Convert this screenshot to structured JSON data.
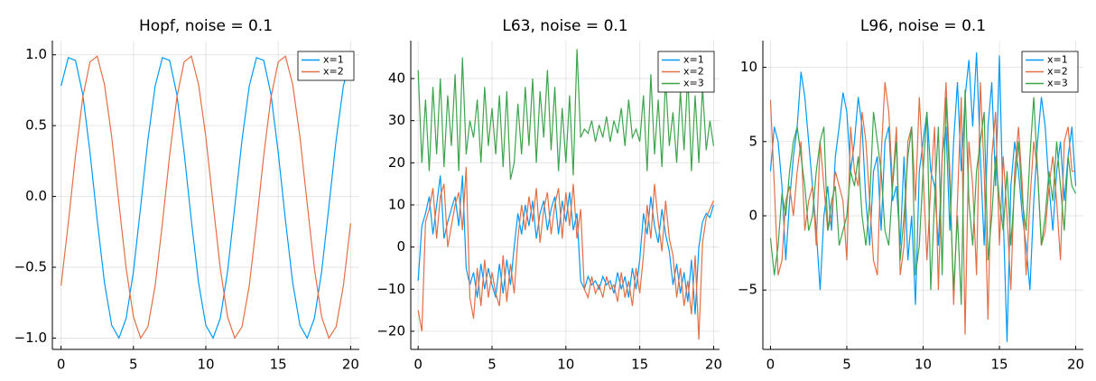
{
  "chart_data": [
    {
      "type": "line",
      "title": "Hopf, noise = 0.1",
      "x": [
        0,
        0.5,
        1,
        1.5,
        2,
        2.5,
        3,
        3.5,
        4,
        4.5,
        5,
        5.5,
        6,
        6.5,
        7,
        7.5,
        8,
        8.5,
        9,
        9.5,
        10,
        10.5,
        11,
        11.5,
        12,
        12.5,
        13,
        13.5,
        14,
        14.5,
        15,
        15.5,
        16,
        16.5,
        17,
        17.5,
        18,
        18.5,
        19,
        19.5,
        20
      ],
      "series": [
        {
          "name": "x=1",
          "color": "#009af9",
          "values": [
            0.78,
            0.98,
            0.96,
            0.72,
            0.31,
            -0.17,
            -0.61,
            -0.91,
            -1.0,
            -0.86,
            -0.53,
            -0.07,
            0.4,
            0.78,
            0.98,
            0.96,
            0.72,
            0.31,
            -0.17,
            -0.61,
            -0.91,
            -1.0,
            -0.86,
            -0.53,
            -0.07,
            0.4,
            0.78,
            0.98,
            0.96,
            0.72,
            0.31,
            -0.17,
            -0.61,
            -0.91,
            -1.0,
            -0.86,
            -0.53,
            -0.07,
            0.4,
            0.78,
            0.98
          ]
        },
        {
          "name": "x=2",
          "color": "#e26f46",
          "values": [
            -0.63,
            -0.19,
            0.29,
            0.7,
            0.95,
            0.99,
            0.79,
            0.42,
            -0.05,
            -0.51,
            -0.85,
            -1.0,
            -0.92,
            -0.63,
            -0.19,
            0.29,
            0.7,
            0.95,
            0.99,
            0.79,
            0.42,
            -0.05,
            -0.51,
            -0.85,
            -1.0,
            -0.92,
            -0.63,
            -0.19,
            0.29,
            0.7,
            0.95,
            0.99,
            0.79,
            0.42,
            -0.05,
            -0.51,
            -0.85,
            -1.0,
            -0.92,
            -0.63,
            -0.19
          ]
        }
      ],
      "xlim": [
        -0.6,
        20.6
      ],
      "ylim": [
        -1.08,
        1.1
      ],
      "xticks": [
        0,
        5,
        10,
        15,
        20
      ],
      "yticks": [
        {
          "value": -1.0,
          "label": "−1.0"
        },
        {
          "value": -0.5,
          "label": "−0.5"
        },
        {
          "value": 0.0,
          "label": "0.0"
        },
        0.5,
        {
          "value": 1.0,
          "label": "1.0"
        }
      ],
      "grid": true,
      "legend": "top-right"
    },
    {
      "type": "line",
      "title": "L63, noise = 0.1",
      "x": [
        0,
        0.25,
        0.5,
        0.75,
        1,
        1.25,
        1.5,
        1.75,
        2,
        2.25,
        2.5,
        2.75,
        3,
        3.25,
        3.5,
        3.75,
        4,
        4.25,
        4.5,
        4.75,
        5,
        5.25,
        5.5,
        5.75,
        6,
        6.25,
        6.5,
        6.75,
        7,
        7.25,
        7.5,
        7.75,
        8,
        8.25,
        8.5,
        8.75,
        9,
        9.25,
        9.5,
        9.75,
        10,
        10.25,
        10.5,
        10.75,
        11,
        11.25,
        11.5,
        11.75,
        12,
        12.25,
        12.5,
        12.75,
        13,
        13.25,
        13.5,
        13.75,
        14,
        14.25,
        14.5,
        14.75,
        15,
        15.25,
        15.5,
        15.75,
        16,
        16.25,
        16.5,
        16.75,
        17,
        17.25,
        17.5,
        17.75,
        18,
        18.25,
        18.5,
        18.75,
        19,
        19.25,
        19.5,
        19.75,
        20
      ],
      "series": [
        {
          "name": "x=1",
          "color": "#009af9",
          "values": [
            -8,
            5,
            8,
            12,
            3,
            10,
            17,
            2,
            6,
            9,
            12,
            5,
            17,
            -5,
            -9,
            -6,
            -12,
            -4,
            -10,
            -5,
            -9,
            -12,
            -4,
            -11,
            -3,
            -9,
            0,
            8,
            3,
            10,
            5,
            11,
            2,
            8,
            11,
            4,
            9,
            12,
            3,
            11,
            6,
            13,
            4,
            8,
            -8,
            -10,
            -7,
            -9,
            -8,
            -10,
            -7,
            -9,
            -8,
            -11,
            -6,
            -10,
            -7,
            -12,
            -5,
            -10,
            -3,
            8,
            3,
            12,
            5,
            1,
            9,
            3,
            -1,
            -9,
            -4,
            -11,
            -6,
            -13,
            -3,
            -16,
            0,
            6,
            8,
            7,
            10
          ]
        },
        {
          "name": "x=2",
          "color": "#e26f46",
          "values": [
            -15,
            -20,
            6,
            9,
            14,
            2,
            12,
            15,
            0,
            5,
            10,
            13,
            4,
            19,
            -12,
            -17,
            -5,
            -14,
            -3,
            -12,
            -6,
            -11,
            -14,
            -2,
            -13,
            -4,
            -11,
            2,
            10,
            4,
            12,
            6,
            14,
            1,
            9,
            13,
            3,
            10,
            14,
            2,
            13,
            5,
            15,
            2,
            9,
            -10,
            -12,
            -7,
            -11,
            -9,
            -12,
            -7,
            -10,
            -9,
            -13,
            -6,
            -12,
            -8,
            -14,
            -5,
            -11,
            -2,
            10,
            2,
            15,
            6,
            -1,
            11,
            2,
            -2,
            -12,
            -5,
            -14,
            -8,
            -16,
            -2,
            -22,
            1,
            7,
            9,
            11
          ]
        },
        {
          "name": "x=3",
          "color": "#3da44d",
          "values": [
            42,
            20,
            35,
            18,
            38,
            22,
            40,
            19,
            36,
            24,
            41,
            18,
            45,
            22,
            30,
            26,
            35,
            20,
            38,
            24,
            33,
            22,
            36,
            19,
            37,
            16,
            20,
            34,
            22,
            38,
            24,
            40,
            20,
            37,
            26,
            42,
            23,
            38,
            18,
            33,
            20,
            36,
            17,
            47,
            26,
            28,
            27,
            30,
            25,
            29,
            26,
            31,
            25,
            30,
            27,
            33,
            24,
            35,
            26,
            28,
            25,
            36,
            18,
            41,
            22,
            35,
            19,
            40,
            24,
            32,
            20,
            37,
            23,
            41,
            18,
            36,
            20,
            38,
            23,
            30,
            24
          ]
        }
      ],
      "xlim": [
        -0.5,
        20.4
      ],
      "ylim": [
        -24.3,
        49
      ],
      "xticks": [
        0,
        5,
        10,
        15,
        20
      ],
      "yticks": [
        {
          "value": -20,
          "label": "−20"
        },
        {
          "value": -10,
          "label": "−10"
        },
        0,
        10,
        20,
        30,
        40
      ],
      "grid": true,
      "legend": "top-right"
    },
    {
      "type": "line",
      "title": "L96, noise = 0.1",
      "x": [
        0,
        0.25,
        0.5,
        0.75,
        1,
        1.25,
        1.5,
        1.75,
        2,
        2.25,
        2.5,
        2.75,
        3,
        3.25,
        3.5,
        3.75,
        4,
        4.25,
        4.5,
        4.75,
        5,
        5.25,
        5.5,
        5.75,
        6,
        6.25,
        6.5,
        6.75,
        7,
        7.25,
        7.5,
        7.75,
        8,
        8.25,
        8.5,
        8.75,
        9,
        9.25,
        9.5,
        9.75,
        10,
        10.25,
        10.5,
        10.75,
        11,
        11.25,
        11.5,
        11.75,
        12,
        12.25,
        12.5,
        12.75,
        13,
        13.25,
        13.5,
        13.75,
        14,
        14.25,
        14.5,
        14.75,
        15,
        15.25,
        15.5,
        15.75,
        16,
        16.25,
        16.5,
        16.75,
        17,
        17.25,
        17.5,
        17.75,
        18,
        18.25,
        18.5,
        18.75,
        19,
        19.25,
        19.5,
        19.75,
        20
      ],
      "series": [
        {
          "name": "x=1",
          "color": "#009af9",
          "values": [
            3,
            6,
            5,
            2,
            -3,
            1,
            4,
            6,
            9.7,
            8,
            5,
            2,
            -1,
            -5,
            0,
            2,
            -1,
            4,
            6,
            8.3,
            7,
            3,
            5,
            8,
            6,
            1,
            -2,
            3,
            4,
            -1,
            5,
            6,
            1,
            2,
            -2,
            4,
            -3,
            0,
            -6,
            3,
            5,
            7,
            3,
            2,
            -2,
            4,
            6,
            -1,
            5,
            9,
            3,
            8,
            10.5,
            6,
            11,
            4,
            -2,
            6,
            9,
            2,
            10.8,
            0,
            -8.5,
            2,
            5,
            3,
            0,
            -2,
            -5,
            1,
            5,
            8,
            6,
            2,
            -1,
            3,
            5,
            1,
            4,
            6,
            2
          ]
        },
        {
          "name": "x=2",
          "color": "#e26f46",
          "values": [
            7.8,
            2,
            -4,
            -3,
            1,
            2,
            0,
            3,
            5,
            -1,
            1,
            2,
            -2,
            5,
            2,
            -1,
            0,
            3,
            2,
            1,
            -3,
            6,
            3,
            2,
            7,
            5,
            1,
            -3,
            -4,
            4,
            9,
            7,
            2,
            6,
            -4,
            -2,
            5,
            6,
            1,
            8,
            3,
            -3,
            2,
            6,
            -5,
            4,
            9,
            3,
            -6,
            1,
            8,
            -8,
            5,
            2,
            -4,
            9,
            3,
            -7,
            4,
            7,
            -2,
            4,
            0,
            -5,
            3,
            6,
            2,
            -4,
            1,
            5,
            3,
            -2,
            -1,
            2,
            4,
            1,
            -3,
            5,
            6,
            3,
            3
          ]
        },
        {
          "name": "x=3",
          "color": "#3da44d",
          "values": [
            -1.5,
            -4,
            -2,
            1.5,
            0,
            3,
            5,
            6,
            4,
            2,
            -1,
            0,
            3,
            5,
            6,
            -1,
            1,
            2,
            -2,
            -1,
            0,
            3,
            2,
            4,
            0,
            -2,
            1,
            7,
            5,
            3,
            -1,
            -2,
            2,
            5,
            -3,
            0,
            4,
            6,
            -4,
            -2,
            3,
            7,
            -5,
            1,
            6,
            -4,
            8,
            2,
            -5,
            0,
            -6,
            8.5,
            1,
            -2,
            3,
            5,
            7,
            -3,
            0,
            4,
            1,
            -1,
            3,
            -2,
            2,
            5,
            1,
            -1,
            4,
            8,
            3,
            -2,
            0,
            3,
            1,
            5,
            2,
            -1,
            4,
            2,
            1.5
          ]
        }
      ],
      "xlim": [
        -0.5,
        20.5
      ],
      "ylim": [
        -9,
        11.8
      ],
      "xticks": [
        0,
        5,
        10,
        15,
        20
      ],
      "yticks": [
        {
          "value": -5,
          "label": "−5"
        },
        0,
        5,
        10
      ],
      "grid": true,
      "legend": "top-right"
    }
  ]
}
